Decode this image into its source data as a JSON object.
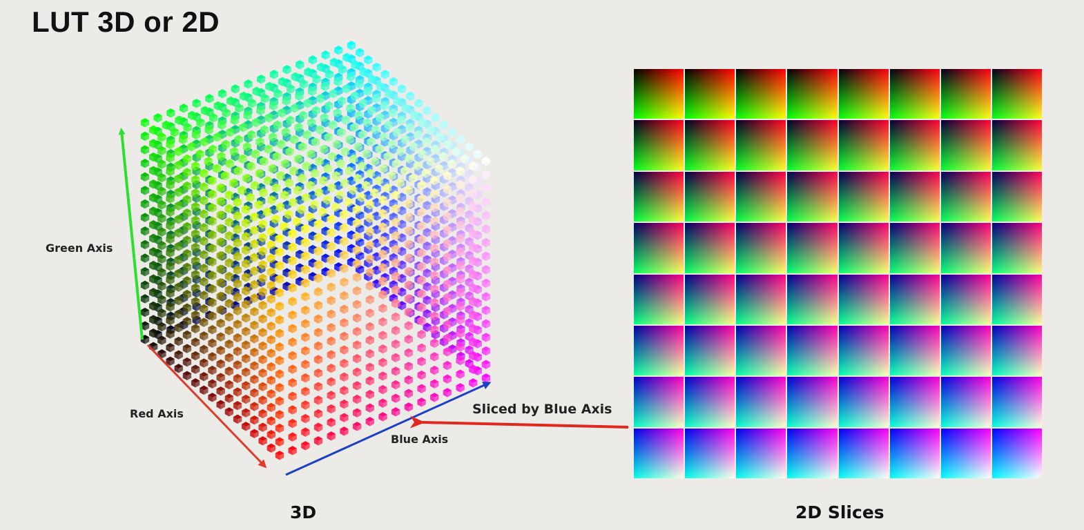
{
  "slide": {
    "title": "LUT 3D or 2D"
  },
  "cube": {
    "caption": "3D",
    "green_axis_label": "Green Axis",
    "red_axis_label": "Red Axis",
    "blue_axis_label": "Blue Axis",
    "colors": {
      "green_axis": "#2ee02e",
      "red_axis": "#e03a2a",
      "blue_axis": "#1a3fc8"
    }
  },
  "slices": {
    "caption": "2D Slices",
    "arrow_label": "Sliced by Blue Axis",
    "arrow_color": "#e0281f",
    "rows": 8,
    "cols": 8
  }
}
